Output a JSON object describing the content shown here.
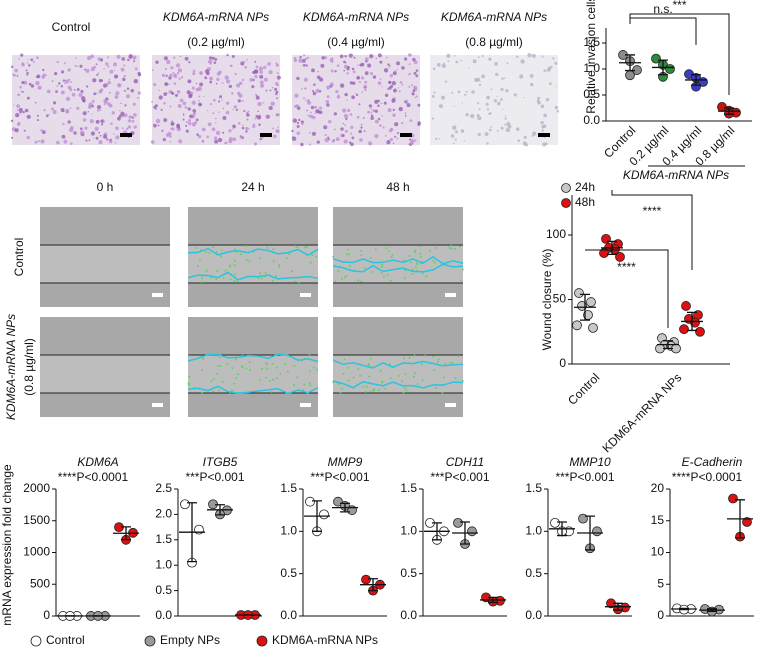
{
  "invasion_images": {
    "labels": [
      [
        "Control"
      ],
      [
        "KDM6A-mRNA NPs",
        "(0.2 µg/ml)"
      ],
      [
        "KDM6A-mRNA NPs",
        "(0.4 µg/ml)"
      ],
      [
        "KDM6A-mRNA NPs",
        "(0.8 µg/ml)"
      ]
    ]
  },
  "wound_images": {
    "times": [
      "0 h",
      "24 h",
      "48 h"
    ],
    "rows": [
      [
        "Control"
      ],
      [
        "KDM6A-mRNA NPs",
        "(0.8 µg/ml)"
      ]
    ]
  },
  "chart_data": [
    {
      "type": "dot",
      "ylabel": "Relative invasion cells/field",
      "categories": [
        "Control",
        "0.2 µg/ml",
        "0.4 µg/ml",
        "0.8 µg/ml"
      ],
      "group_label": "KDM6A-mRNA NPs",
      "ylim": [
        0,
        1.5
      ],
      "yticks": [
        {
          "value": 0,
          "label": "0.0"
        },
        0.5,
        {
          "value": 1,
          "label": "1.0"
        },
        1.5
      ],
      "groups": [
        {
          "color": "#8c8c8c",
          "values": [
            1.27,
            1.15,
            0.98,
            0.88
          ],
          "mean": 1.12,
          "sd": 0.15
        },
        {
          "color": "#2e8b3a",
          "values": [
            1.2,
            1.08,
            1.0,
            0.85
          ],
          "mean": 1.03,
          "sd": 0.14
        },
        {
          "color": "#3b3bcc",
          "values": [
            0.9,
            0.83,
            0.75,
            0.66
          ],
          "mean": 0.79,
          "sd": 0.1
        },
        {
          "color": "#cc1111",
          "values": [
            0.27,
            0.2,
            0.16,
            0.14
          ],
          "mean": 0.19,
          "sd": 0.06
        }
      ],
      "annotations": [
        "n.s.",
        "***"
      ]
    },
    {
      "type": "dot",
      "ylabel": "Wound closure (%)",
      "categories": [
        "Control",
        "KDM6A-mRNA NPs"
      ],
      "ylim": [
        0,
        100
      ],
      "yticks": [
        0,
        50,
        100
      ],
      "legend": [
        {
          "name": "24h",
          "color": "#c8c8c8"
        },
        {
          "name": "48h",
          "color": "#dd1111"
        }
      ],
      "groups": [
        {
          "color": "#c8c8c8",
          "values": [
            55,
            48,
            45,
            38,
            30,
            28
          ],
          "mean": 44,
          "sd": 10
        },
        {
          "color": "#dd1111",
          "values": [
            97,
            93,
            90,
            89,
            86,
            83
          ],
          "mean": 90,
          "sd": 5
        },
        {
          "color": "#c8c8c8",
          "values": [
            20,
            17,
            15,
            14,
            12,
            12
          ],
          "mean": 15,
          "sd": 3
        },
        {
          "color": "#dd1111",
          "values": [
            45,
            38,
            35,
            32,
            27,
            25
          ],
          "mean": 33,
          "sd": 7
        }
      ],
      "annotations": [
        "****",
        "****"
      ]
    },
    {
      "type": "dot",
      "title": "KDM6A",
      "annotation": "****P<0.0001",
      "ylabel": "mRNA expression fold change",
      "ylim": [
        0,
        2000
      ],
      "yticks": [
        0,
        500,
        1000,
        1500,
        2000
      ],
      "groups": [
        {
          "color": "#ffffff",
          "values": [
            1,
            1,
            1
          ],
          "mean": 1,
          "sd": 0
        },
        {
          "color": "#9a9a9a",
          "values": [
            1,
            1,
            1
          ],
          "mean": 1,
          "sd": 0
        },
        {
          "color": "#dd1111",
          "values": [
            1400,
            1310,
            1200
          ],
          "mean": 1303,
          "sd": 100
        }
      ]
    },
    {
      "type": "dot",
      "title": "ITGB5",
      "annotation": "***P<0.001",
      "ylim": [
        0,
        2.5
      ],
      "yticks": [
        {
          "value": 0,
          "label": "0.0"
        },
        0.5,
        {
          "value": 1,
          "label": "1.0"
        },
        1.5,
        {
          "value": 2,
          "label": "2.0"
        },
        2.5
      ],
      "groups": [
        {
          "color": "#ffffff",
          "values": [
            2.2,
            1.7,
            1.05
          ],
          "mean": 1.65,
          "sd": 0.58
        },
        {
          "color": "#9a9a9a",
          "values": [
            2.2,
            2.08,
            2.0
          ],
          "mean": 2.09,
          "sd": 0.1
        },
        {
          "color": "#dd1111",
          "values": [
            0.02,
            0.02,
            0.02
          ],
          "mean": 0.02,
          "sd": 0
        }
      ]
    },
    {
      "type": "dot",
      "title": "MMP9",
      "annotation": "***P<0.001",
      "ylim": [
        0,
        1.5
      ],
      "yticks": [
        {
          "value": 0,
          "label": "0.0"
        },
        0.5,
        {
          "value": 1,
          "label": "1.0"
        },
        1.5
      ],
      "groups": [
        {
          "color": "#ffffff",
          "values": [
            1.35,
            1.2,
            1.0
          ],
          "mean": 1.18,
          "sd": 0.18
        },
        {
          "color": "#9a9a9a",
          "values": [
            1.35,
            1.25,
            1.3
          ],
          "mean": 1.28,
          "sd": 0.05
        },
        {
          "color": "#dd1111",
          "values": [
            0.43,
            0.37,
            0.3
          ],
          "mean": 0.37,
          "sd": 0.07
        }
      ]
    },
    {
      "type": "dot",
      "title": "CDH11",
      "annotation": "***P<0.001",
      "ylim": [
        0,
        1.5
      ],
      "yticks": [
        {
          "value": 0,
          "label": "0.0"
        },
        0.5,
        {
          "value": 1,
          "label": "1.0"
        },
        1.5
      ],
      "groups": [
        {
          "color": "#ffffff",
          "values": [
            1.1,
            1.0,
            0.9
          ],
          "mean": 1.0,
          "sd": 0.1
        },
        {
          "color": "#9a9a9a",
          "values": [
            1.1,
            1.0,
            0.85
          ],
          "mean": 0.98,
          "sd": 0.13
        },
        {
          "color": "#dd1111",
          "values": [
            0.22,
            0.18,
            0.17
          ],
          "mean": 0.19,
          "sd": 0.03
        }
      ]
    },
    {
      "type": "dot",
      "title": "MMP10",
      "annotation": "***P<0.001",
      "ylim": [
        0,
        1.5
      ],
      "yticks": [
        {
          "value": 0,
          "label": "0.0"
        },
        0.5,
        {
          "value": 1,
          "label": "1.0"
        },
        1.5
      ],
      "groups": [
        {
          "color": "#ffffff",
          "values": [
            1.1,
            1.0,
            1.0
          ],
          "mean": 1.03,
          "sd": 0.08
        },
        {
          "color": "#9a9a9a",
          "values": [
            1.15,
            1.0,
            0.8
          ],
          "mean": 0.98,
          "sd": 0.2
        },
        {
          "color": "#dd1111",
          "values": [
            0.15,
            0.1,
            0.08
          ],
          "mean": 0.11,
          "sd": 0.04
        }
      ]
    },
    {
      "type": "dot",
      "title": "E-Cadherin",
      "annotation": "****P<0.0001",
      "ylim": [
        0,
        20
      ],
      "yticks": [
        0,
        5,
        10,
        15,
        20
      ],
      "groups": [
        {
          "color": "#ffffff",
          "values": [
            1.2,
            1.1,
            1.0
          ],
          "mean": 1.1,
          "sd": 0.1
        },
        {
          "color": "#9a9a9a",
          "values": [
            1.1,
            1.0,
            0.7
          ],
          "mean": 0.93,
          "sd": 0.2
        },
        {
          "color": "#dd1111",
          "values": [
            18.5,
            14.8,
            12.5
          ],
          "mean": 15.3,
          "sd": 3
        }
      ]
    }
  ],
  "legend": [
    {
      "name": "Control",
      "color": "#ffffff"
    },
    {
      "name": "Empty NPs",
      "color": "#9a9a9a"
    },
    {
      "name": "KDM6A-mRNA NPs",
      "color": "#dd1111"
    }
  ]
}
